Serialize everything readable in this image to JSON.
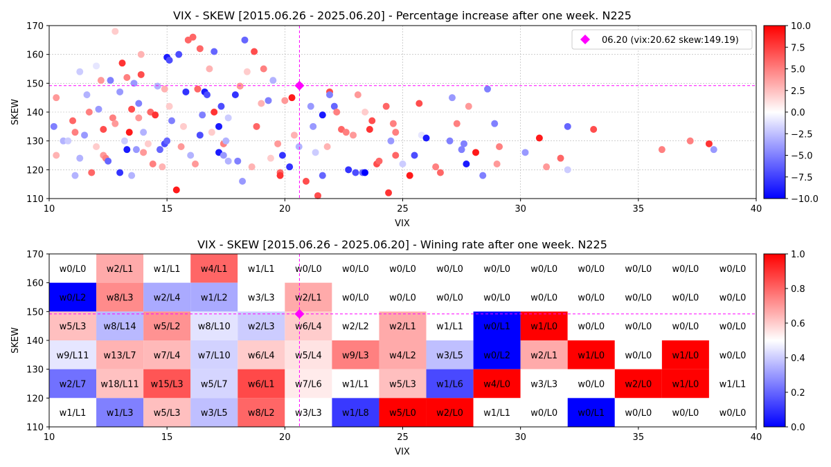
{
  "chart_data": [
    {
      "type": "scatter",
      "title": "VIX - SKEW [2015.06.26 - 2025.06.20]  - Percentage increase after one week. N225",
      "xlabel": "VIX",
      "ylabel": "SKEW",
      "xlim": [
        10,
        40
      ],
      "ylim": [
        110,
        170
      ],
      "xticks": [
        10,
        15,
        20,
        25,
        30,
        35,
        40
      ],
      "yticks": [
        110,
        120,
        130,
        140,
        150,
        160,
        170
      ],
      "grid": true,
      "legend_position": "top-right",
      "legend_label": "06.20 (vix:20.62 skew:149.19)",
      "marker_color": "#ff00ff",
      "reference_point": {
        "vix": 20.62,
        "skew": 149.19
      },
      "colorbar": {
        "range": [
          -10,
          10
        ],
        "ticks": [
          "10.0",
          "7.5",
          "5.0",
          "2.5",
          "0.0",
          "−2.5",
          "−5.0",
          "−7.5",
          "−10.0"
        ],
        "colormap": "bwr"
      },
      "points": [
        [
          10.2,
          135,
          -5
        ],
        [
          10.3,
          125,
          3
        ],
        [
          10.3,
          145,
          4
        ],
        [
          10.6,
          130,
          -3
        ],
        [
          10.8,
          130,
          -2
        ],
        [
          11.0,
          137,
          6
        ],
        [
          11.1,
          133,
          5
        ],
        [
          11.1,
          118,
          -3
        ],
        [
          11.3,
          154,
          -2
        ],
        [
          11.3,
          124,
          -3
        ],
        [
          11.5,
          132,
          -4
        ],
        [
          11.6,
          146,
          -3
        ],
        [
          11.7,
          140,
          5
        ],
        [
          11.8,
          119,
          6
        ],
        [
          12.0,
          128,
          2
        ],
        [
          12.0,
          156,
          -1
        ],
        [
          12.1,
          141,
          -4
        ],
        [
          12.2,
          151,
          4
        ],
        [
          12.3,
          134,
          7
        ],
        [
          12.3,
          125,
          4
        ],
        [
          12.4,
          124,
          5
        ],
        [
          12.5,
          123,
          -6
        ],
        [
          12.6,
          151,
          -5
        ],
        [
          12.7,
          138,
          5
        ],
        [
          12.8,
          168,
          2
        ],
        [
          13.0,
          119,
          -8
        ],
        [
          13.0,
          147,
          -4
        ],
        [
          13.1,
          157,
          8
        ],
        [
          13.2,
          130,
          -2
        ],
        [
          13.3,
          152,
          5
        ],
        [
          13.3,
          127,
          -9
        ],
        [
          13.4,
          133,
          9
        ],
        [
          13.5,
          141,
          7
        ],
        [
          13.6,
          150,
          -4
        ],
        [
          13.7,
          127,
          -4
        ],
        [
          13.8,
          143,
          -5
        ],
        [
          13.8,
          138,
          4
        ],
        [
          13.9,
          160,
          3
        ],
        [
          13.9,
          153,
          7
        ],
        [
          14.0,
          126,
          4
        ],
        [
          14.2,
          129,
          2
        ],
        [
          14.3,
          140,
          6
        ],
        [
          14.4,
          122,
          5
        ],
        [
          14.5,
          139,
          8
        ],
        [
          14.6,
          149,
          -3
        ],
        [
          14.7,
          127,
          -6
        ],
        [
          14.8,
          121,
          3
        ],
        [
          14.9,
          129,
          -7
        ],
        [
          14.9,
          148,
          3
        ],
        [
          15.0,
          130,
          -6
        ],
        [
          15.0,
          159,
          -9
        ],
        [
          15.1,
          158,
          -7
        ],
        [
          15.2,
          137,
          -5
        ],
        [
          15.4,
          113,
          9
        ],
        [
          15.5,
          160,
          -7
        ],
        [
          15.6,
          128,
          4
        ],
        [
          15.7,
          135,
          2
        ],
        [
          15.8,
          147,
          -8
        ],
        [
          15.9,
          165,
          6
        ],
        [
          16.1,
          166,
          6
        ],
        [
          16.2,
          122,
          4
        ],
        [
          16.3,
          148,
          6
        ],
        [
          16.4,
          132,
          -7
        ],
        [
          16.4,
          162,
          6
        ],
        [
          16.5,
          139,
          -5
        ],
        [
          16.6,
          147,
          -9
        ],
        [
          16.7,
          146,
          -7
        ],
        [
          16.8,
          155,
          3
        ],
        [
          16.9,
          133,
          2
        ],
        [
          17.0,
          161,
          -6
        ],
        [
          17.0,
          140,
          8
        ],
        [
          17.2,
          135,
          -9
        ],
        [
          17.2,
          126,
          -9
        ],
        [
          17.3,
          142,
          -7
        ],
        [
          17.4,
          129,
          5
        ],
        [
          17.4,
          125,
          -4
        ],
        [
          17.5,
          130,
          -3
        ],
        [
          17.6,
          123,
          -3
        ],
        [
          17.9,
          146,
          -8
        ],
        [
          18.0,
          123,
          -5
        ],
        [
          18.1,
          149,
          4
        ],
        [
          18.2,
          116,
          -4
        ],
        [
          18.3,
          165,
          -6
        ],
        [
          18.4,
          154,
          2
        ],
        [
          18.6,
          121,
          3
        ],
        [
          18.7,
          161,
          7
        ],
        [
          18.8,
          135,
          6
        ],
        [
          19.0,
          143,
          3
        ],
        [
          19.1,
          155,
          5
        ],
        [
          19.3,
          144,
          -5
        ],
        [
          19.5,
          151,
          -3
        ],
        [
          19.7,
          129,
          4
        ],
        [
          19.8,
          119,
          6
        ],
        [
          19.8,
          118,
          8
        ],
        [
          19.9,
          125,
          -8
        ],
        [
          20.0,
          144,
          4
        ],
        [
          20.2,
          121,
          -8
        ],
        [
          20.3,
          145,
          9
        ],
        [
          20.6,
          128,
          -3
        ],
        [
          20.9,
          116,
          7
        ],
        [
          21.1,
          142,
          -4
        ],
        [
          21.2,
          135,
          -4
        ],
        [
          21.3,
          126,
          -2
        ],
        [
          21.4,
          111,
          7
        ],
        [
          21.6,
          139,
          -9
        ],
        [
          21.6,
          118,
          -6
        ],
        [
          21.8,
          128,
          3
        ],
        [
          21.9,
          147,
          7
        ],
        [
          21.9,
          146,
          -5
        ],
        [
          22.1,
          142,
          -6
        ],
        [
          22.2,
          140,
          5
        ],
        [
          22.4,
          134,
          6
        ],
        [
          22.6,
          133,
          5
        ],
        [
          22.7,
          120,
          -8
        ],
        [
          23.0,
          119,
          -7
        ],
        [
          23.1,
          146,
          4
        ],
        [
          23.3,
          119,
          -6
        ],
        [
          23.4,
          119,
          -10
        ],
        [
          23.6,
          134,
          8
        ],
        [
          23.7,
          137,
          7
        ],
        [
          23.9,
          122,
          7
        ],
        [
          24.0,
          123,
          6
        ],
        [
          24.3,
          142,
          6
        ],
        [
          24.4,
          112,
          8
        ],
        [
          24.5,
          130,
          -4
        ],
        [
          24.6,
          136,
          5
        ],
        [
          24.7,
          125,
          6
        ],
        [
          24.7,
          133,
          5
        ],
        [
          25.0,
          122,
          -2
        ],
        [
          25.3,
          118,
          9
        ],
        [
          25.5,
          125,
          -7
        ],
        [
          25.7,
          143,
          7
        ],
        [
          25.8,
          132,
          -1
        ],
        [
          26.0,
          131,
          -9
        ],
        [
          26.6,
          119,
          6
        ],
        [
          27.0,
          130,
          -5
        ],
        [
          27.1,
          145,
          -4
        ],
        [
          27.3,
          136,
          5
        ],
        [
          27.5,
          127,
          -5
        ],
        [
          27.6,
          129,
          -5
        ],
        [
          27.7,
          122,
          -9
        ],
        [
          27.8,
          142,
          4
        ],
        [
          28.1,
          126,
          9
        ],
        [
          28.4,
          118,
          -5
        ],
        [
          28.6,
          148,
          -5
        ],
        [
          28.9,
          136,
          -5
        ],
        [
          29.0,
          122,
          4
        ],
        [
          29.1,
          128,
          5
        ],
        [
          30.2,
          126,
          -4
        ],
        [
          30.8,
          131,
          9
        ],
        [
          31.1,
          121,
          4
        ],
        [
          31.7,
          124,
          6
        ],
        [
          32.0,
          135,
          -6
        ],
        [
          32.0,
          120,
          -2
        ],
        [
          33.1,
          134,
          7
        ],
        [
          36.0,
          127,
          5
        ],
        [
          37.2,
          130,
          5
        ],
        [
          38.0,
          129,
          8
        ],
        [
          38.2,
          127,
          -4
        ],
        [
          12.8,
          136,
          4
        ],
        [
          14.0,
          133,
          -3
        ],
        [
          15.1,
          142,
          2
        ],
        [
          17.6,
          138,
          -2
        ],
        [
          22.9,
          132,
          4
        ],
        [
          26.4,
          121,
          5
        ],
        [
          19.4,
          124,
          2
        ],
        [
          16.0,
          125,
          -3
        ],
        [
          13.5,
          118,
          -3
        ],
        [
          23.4,
          140,
          2
        ],
        [
          20.4,
          132,
          3
        ]
      ]
    },
    {
      "type": "heatmap",
      "title": "VIX - SKEW [2015.06.26 - 2025.06.20]  - Wining rate after one week. N225",
      "xlabel": "VIX",
      "ylabel": "SKEW",
      "xlim": [
        10,
        40
      ],
      "ylim": [
        110,
        170
      ],
      "xticks": [
        10,
        15,
        20,
        25,
        30,
        35,
        40
      ],
      "yticks": [
        110,
        120,
        130,
        140,
        150,
        160,
        170
      ],
      "bin_width_x": 2,
      "bin_width_y": 10,
      "colorbar": {
        "range": [
          0,
          1
        ],
        "ticks": [
          "1.0",
          "0.8",
          "0.6",
          "0.4",
          "0.2",
          "0.0"
        ],
        "colormap": "bwr"
      },
      "reference_point": {
        "vix": 20.62,
        "skew": 149.19
      },
      "rows_from_top": [
        [
          "w0/L0",
          "w2/L1",
          "w1/L1",
          "w4/L1",
          "w1/L1",
          "w0/L0",
          "w0/L0",
          "w0/L0",
          "w0/L0",
          "w0/L0",
          "w0/L0",
          "w0/L0",
          "w0/L0",
          "w0/L0",
          "w0/L0"
        ],
        [
          "w0/L2",
          "w8/L3",
          "w2/L4",
          "w1/L2",
          "w3/L3",
          "w2/L1",
          "w0/L0",
          "w0/L0",
          "w0/L0",
          "w0/L0",
          "w0/L0",
          "w0/L0",
          "w0/L0",
          "w0/L0",
          "w0/L0"
        ],
        [
          "w5/L3",
          "w8/L14",
          "w5/L2",
          "w8/L10",
          "w2/L3",
          "w6/L4",
          "w2/L2",
          "w2/L1",
          "w1/L1",
          "w0/L1",
          "w1/L0",
          "w0/L0",
          "w0/L0",
          "w0/L0",
          "w0/L0"
        ],
        [
          "w9/L11",
          "w13/L7",
          "w7/L4",
          "w7/L10",
          "w6/L4",
          "w5/L4",
          "w9/L3",
          "w4/L2",
          "w3/L5",
          "w0/L2",
          "w2/L1",
          "w1/L0",
          "w0/L0",
          "w1/L0",
          "w0/L0"
        ],
        [
          "w2/L7",
          "w18/L11",
          "w15/L3",
          "w5/L7",
          "w6/L1",
          "w7/L6",
          "w1/L1",
          "w5/L3",
          "w1/L6",
          "w4/L0",
          "w3/L3",
          "w0/L0",
          "w2/L0",
          "w1/L0",
          "w1/L1"
        ],
        [
          "w1/L1",
          "w1/L3",
          "w5/L3",
          "w3/L5",
          "w8/L2",
          "w3/L3",
          "w1/L8",
          "w5/L0",
          "w2/L0",
          "w1/L1",
          "w0/L0",
          "w0/L1",
          "w0/L0",
          "w0/L0",
          "w0/L0"
        ]
      ]
    }
  ]
}
